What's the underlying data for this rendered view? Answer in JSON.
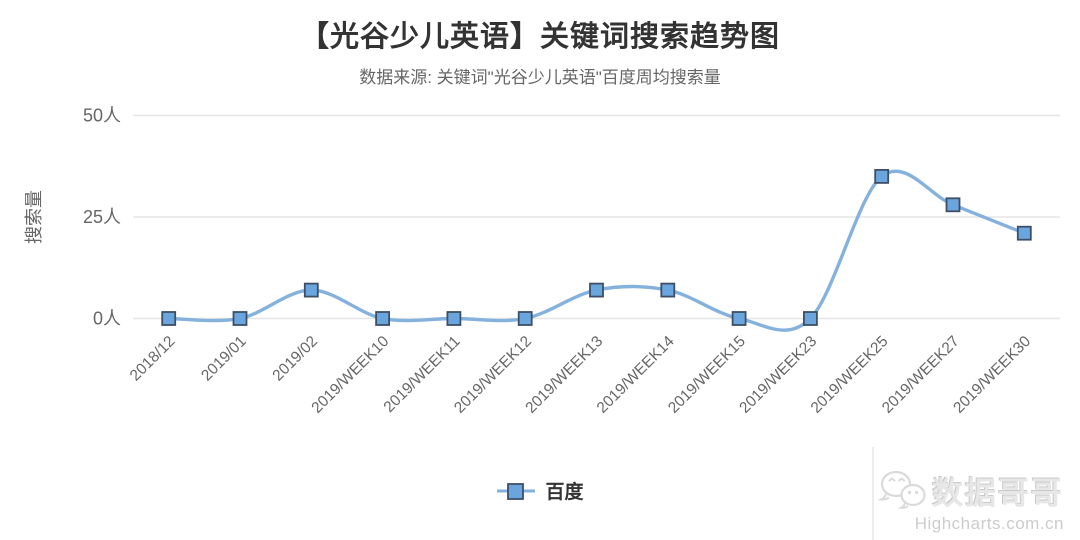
{
  "header": {
    "title": "【光谷少儿英语】关键词搜索趋势图",
    "subtitle": "数据来源: 关键词\"光谷少儿英语\"百度周均搜索量"
  },
  "chart_data": {
    "type": "line",
    "shape": "spline",
    "title": "【光谷少儿英语】关键词搜索趋势图",
    "subtitle": "数据来源: 关键词\"光谷少儿英语\"百度周均搜索量",
    "categories": [
      "2018/12",
      "2019/01",
      "2019/02",
      "2019/WEEK10",
      "2019/WEEK11",
      "2019/WEEK12",
      "2019/WEEK13",
      "2019/WEEK14",
      "2019/WEEK15",
      "2019/WEEK23",
      "2019/WEEK25",
      "2019/WEEK27",
      "2019/WEEK30"
    ],
    "series": [
      {
        "name": "百度",
        "values": [
          0,
          0,
          7,
          0,
          0,
          0,
          7,
          7,
          0,
          0,
          35,
          28,
          21
        ]
      }
    ],
    "xlabel": "",
    "ylabel": "搜索量",
    "ylim": [
      0,
      50
    ],
    "yticks": [
      0,
      25,
      50
    ],
    "ytick_suffix": "人",
    "grid": true,
    "legend_position": "bottom-center",
    "marker_style": "square",
    "colors": {
      "line": "#85b2dd",
      "marker_fill": "#6ba5dd",
      "marker_border": "#3d4f66",
      "grid": "#e6e6e6",
      "axis_text": "#666666",
      "title_text": "#333333"
    }
  },
  "watermark": {
    "brand": "数据哥哥",
    "source": "Highcharts.com.cn",
    "icon": "wechat-icon"
  }
}
